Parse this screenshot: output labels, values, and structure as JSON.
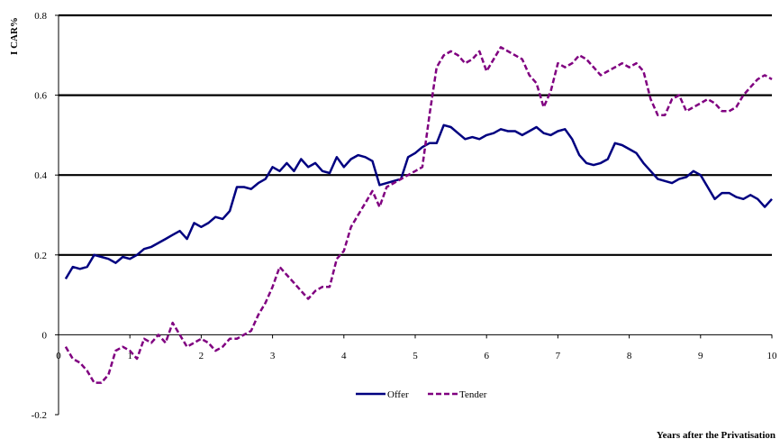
{
  "chart_data": {
    "type": "line",
    "title": "",
    "xlabel": "Years after the Privatisation",
    "ylabel": "I CAR%",
    "xlim": [
      0,
      10
    ],
    "ylim": [
      -0.2,
      0.8
    ],
    "x_ticks": [
      "0",
      "1",
      "2",
      "3",
      "4",
      "5",
      "6",
      "7",
      "8",
      "9",
      "10"
    ],
    "y_ticks": [
      "-0.2",
      "0",
      "0.2",
      "0.4",
      "0.6",
      "0.8"
    ],
    "grid": "horizontal at 0.2, 0.4, 0.6, 0.8",
    "legend_position": "bottom-center",
    "colors": {
      "offer": "#000080",
      "tender": "#800080",
      "gridline": "#000000"
    },
    "series": [
      {
        "name": "Offer",
        "style": "solid",
        "x": [
          0.1,
          0.2,
          0.3,
          0.4,
          0.5,
          0.6,
          0.7,
          0.8,
          0.9,
          1.0,
          1.1,
          1.2,
          1.3,
          1.4,
          1.5,
          1.6,
          1.7,
          1.8,
          1.9,
          2.0,
          2.1,
          2.2,
          2.3,
          2.4,
          2.5,
          2.6,
          2.7,
          2.8,
          2.9,
          3.0,
          3.1,
          3.2,
          3.3,
          3.4,
          3.5,
          3.6,
          3.7,
          3.8,
          3.9,
          4.0,
          4.1,
          4.2,
          4.3,
          4.4,
          4.5,
          4.6,
          4.7,
          4.8,
          4.9,
          5.0,
          5.1,
          5.2,
          5.3,
          5.4,
          5.5,
          5.6,
          5.7,
          5.8,
          5.9,
          6.0,
          6.1,
          6.2,
          6.3,
          6.4,
          6.5,
          6.6,
          6.7,
          6.8,
          6.9,
          7.0,
          7.1,
          7.2,
          7.3,
          7.4,
          7.5,
          7.6,
          7.7,
          7.8,
          7.9,
          8.0,
          8.1,
          8.2,
          8.3,
          8.4,
          8.5,
          8.6,
          8.7,
          8.8,
          8.9,
          9.0,
          9.1,
          9.2,
          9.3,
          9.4,
          9.5,
          9.6,
          9.7,
          9.8,
          9.9,
          10.0
        ],
        "values": [
          0.14,
          0.17,
          0.165,
          0.17,
          0.2,
          0.195,
          0.19,
          0.18,
          0.195,
          0.19,
          0.2,
          0.215,
          0.22,
          0.23,
          0.24,
          0.25,
          0.26,
          0.24,
          0.28,
          0.27,
          0.28,
          0.295,
          0.29,
          0.31,
          0.37,
          0.37,
          0.365,
          0.38,
          0.39,
          0.42,
          0.41,
          0.43,
          0.41,
          0.44,
          0.42,
          0.43,
          0.41,
          0.405,
          0.445,
          0.42,
          0.44,
          0.45,
          0.445,
          0.435,
          0.375,
          0.38,
          0.385,
          0.39,
          0.445,
          0.455,
          0.47,
          0.48,
          0.48,
          0.525,
          0.52,
          0.505,
          0.49,
          0.495,
          0.49,
          0.5,
          0.505,
          0.515,
          0.51,
          0.51,
          0.5,
          0.51,
          0.52,
          0.505,
          0.5,
          0.51,
          0.515,
          0.49,
          0.45,
          0.43,
          0.425,
          0.43,
          0.44,
          0.48,
          0.475,
          0.465,
          0.455,
          0.43,
          0.41,
          0.39,
          0.385,
          0.38,
          0.39,
          0.395,
          0.41,
          0.4,
          0.37,
          0.34,
          0.355,
          0.355,
          0.345,
          0.34,
          0.35,
          0.34,
          0.32,
          0.34
        ]
      },
      {
        "name": "Tender",
        "style": "dashed",
        "x": [
          0.1,
          0.2,
          0.3,
          0.4,
          0.5,
          0.6,
          0.7,
          0.8,
          0.9,
          1.0,
          1.1,
          1.2,
          1.3,
          1.4,
          1.5,
          1.6,
          1.7,
          1.8,
          1.9,
          2.0,
          2.1,
          2.2,
          2.3,
          2.4,
          2.5,
          2.6,
          2.7,
          2.8,
          2.9,
          3.0,
          3.1,
          3.2,
          3.3,
          3.4,
          3.5,
          3.6,
          3.7,
          3.8,
          3.9,
          4.0,
          4.1,
          4.2,
          4.3,
          4.4,
          4.5,
          4.6,
          4.7,
          4.8,
          4.9,
          5.0,
          5.1,
          5.2,
          5.3,
          5.4,
          5.5,
          5.6,
          5.7,
          5.8,
          5.9,
          6.0,
          6.1,
          6.2,
          6.3,
          6.4,
          6.5,
          6.6,
          6.7,
          6.8,
          6.9,
          7.0,
          7.1,
          7.2,
          7.3,
          7.4,
          7.5,
          7.6,
          7.7,
          7.8,
          7.9,
          8.0,
          8.1,
          8.2,
          8.3,
          8.4,
          8.5,
          8.6,
          8.7,
          8.8,
          8.9,
          9.0,
          9.1,
          9.2,
          9.3,
          9.4,
          9.5,
          9.6,
          9.7,
          9.8,
          9.9,
          10.0
        ],
        "values": [
          -0.03,
          -0.06,
          -0.07,
          -0.09,
          -0.12,
          -0.12,
          -0.1,
          -0.04,
          -0.03,
          -0.04,
          -0.06,
          -0.01,
          -0.02,
          0.0,
          -0.02,
          0.03,
          0.0,
          -0.03,
          -0.02,
          -0.01,
          -0.02,
          -0.04,
          -0.03,
          -0.01,
          -0.01,
          0.0,
          0.01,
          0.05,
          0.08,
          0.12,
          0.17,
          0.15,
          0.13,
          0.11,
          0.09,
          0.11,
          0.12,
          0.12,
          0.19,
          0.21,
          0.27,
          0.3,
          0.33,
          0.36,
          0.32,
          0.37,
          0.38,
          0.39,
          0.4,
          0.41,
          0.42,
          0.55,
          0.67,
          0.7,
          0.71,
          0.7,
          0.68,
          0.69,
          0.71,
          0.66,
          0.69,
          0.72,
          0.71,
          0.7,
          0.69,
          0.65,
          0.63,
          0.57,
          0.61,
          0.68,
          0.67,
          0.68,
          0.7,
          0.69,
          0.67,
          0.65,
          0.66,
          0.67,
          0.68,
          0.67,
          0.68,
          0.66,
          0.59,
          0.55,
          0.55,
          0.59,
          0.6,
          0.56,
          0.57,
          0.58,
          0.59,
          0.58,
          0.56,
          0.56,
          0.57,
          0.6,
          0.62,
          0.64,
          0.65,
          0.64
        ]
      }
    ]
  }
}
